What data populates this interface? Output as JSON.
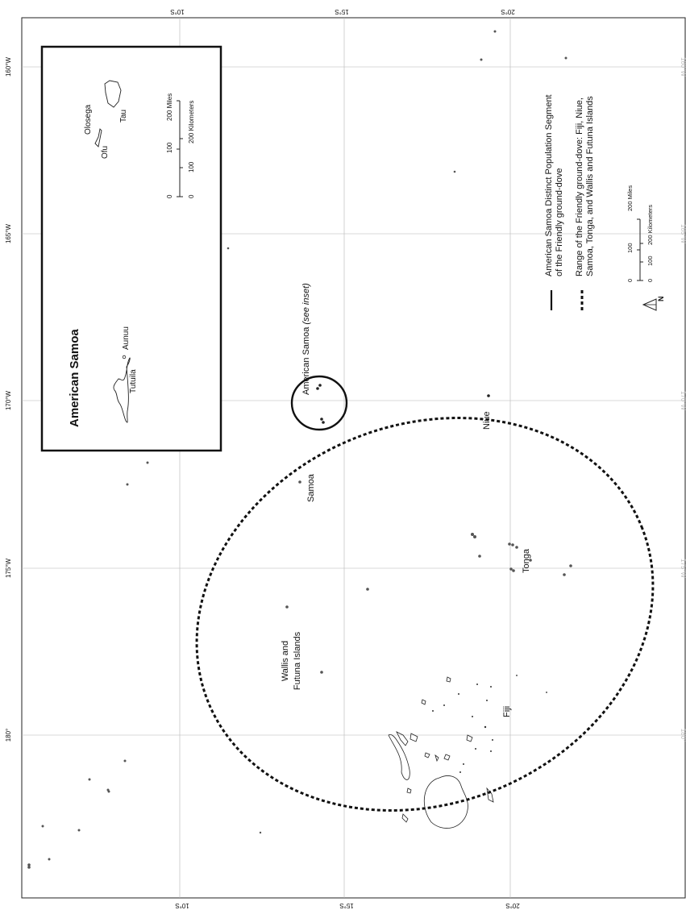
{
  "map": {
    "graticule": {
      "top_latitudes": [
        "10°S",
        "15°S",
        "20°S"
      ],
      "bottom_latitudes": [
        "10°S",
        "15°S",
        "20°S"
      ],
      "left_longitudes": [
        "160°W",
        "165°W",
        "170°W",
        "175°W",
        "180°"
      ],
      "right_longitudes": [
        "160°W",
        "165°W",
        "170°W",
        "175°W",
        "180°"
      ]
    },
    "labels": {
      "american_samoa_circle": "American Samoa",
      "see_inset": "(see inset)",
      "samoa": "Samoa",
      "niue": "Niue",
      "tonga": "Tonga",
      "wallis_line1": "Wallis and",
      "wallis_line2": "Futuna Islands",
      "fiji": "Fiji"
    },
    "inset": {
      "title": "American Samoa",
      "islands": [
        "Tutuila",
        "Aunuu",
        "Ofu",
        "Olosega",
        "Tau"
      ],
      "scale": {
        "miles": [
          "0",
          "100",
          "200 Miles"
        ],
        "km": [
          "0",
          "100",
          "200 Kilometers"
        ]
      }
    },
    "legend": {
      "solid_line1": "American Samoa Distinct Population Segment",
      "solid_line2": "of the Friendly ground-dove",
      "dotted_line1": "Range of the Friendly ground-dove: Fiji, Niue,",
      "dotted_line2": "Samoa, Tonga, and Wallis and Futuna Islands",
      "scale_miles": [
        "0",
        "100",
        "200 Miles"
      ],
      "scale_km": [
        "0",
        "100",
        "200 Kilometers"
      ],
      "north": "N"
    }
  }
}
